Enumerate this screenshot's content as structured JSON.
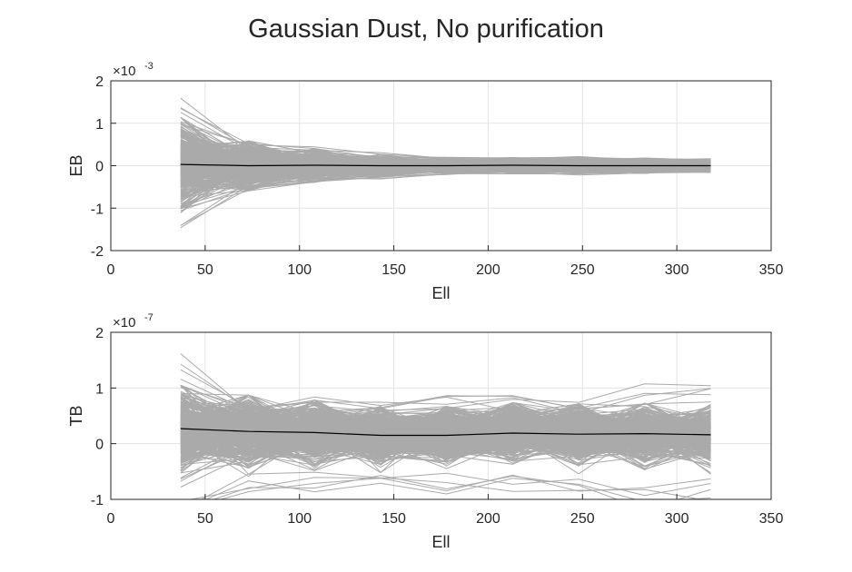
{
  "figure": {
    "title": "Gaussian Dust, No purification"
  },
  "chart_data": [
    {
      "type": "line",
      "ylabel": "EB",
      "xlabel": "Ell",
      "exponent": "-3",
      "xlim": [
        0,
        350
      ],
      "ylim": [
        -2,
        2
      ],
      "xticks": [
        0,
        50,
        100,
        150,
        200,
        250,
        300,
        350
      ],
      "yticks": [
        -2,
        -1,
        0,
        1,
        2
      ],
      "grid": true,
      "x": [
        37,
        73,
        108,
        143,
        178,
        213,
        248,
        283,
        318
      ],
      "mean_line": {
        "color": "#000000",
        "values": [
          0.03,
          0.0,
          0.01,
          0.0,
          0.0,
          0.01,
          0.0,
          0.0,
          0.0
        ]
      },
      "realizations": {
        "color": "#aaaaaa",
        "count": 500,
        "envelope": [
          0.85,
          0.45,
          0.3,
          0.2,
          0.14,
          0.14,
          0.14,
          0.14,
          0.11
        ],
        "extremes": [
          1.78,
          0.62,
          0.45,
          0.32,
          0.22,
          0.2,
          0.22,
          0.2,
          0.17
        ]
      }
    },
    {
      "type": "line",
      "ylabel": "TB",
      "xlabel": "Ell",
      "exponent": "-7",
      "xlim": [
        0,
        350
      ],
      "ylim": [
        -1,
        2
      ],
      "xticks": [
        0,
        50,
        100,
        150,
        200,
        250,
        300,
        350
      ],
      "yticks": [
        -1,
        0,
        1,
        2
      ],
      "grid": true,
      "x": [
        37,
        73,
        108,
        143,
        178,
        213,
        248,
        283,
        318
      ],
      "mean_line": {
        "color": "#000000",
        "values": [
          0.27,
          0.22,
          0.2,
          0.15,
          0.15,
          0.19,
          0.17,
          0.18,
          0.16
        ]
      },
      "realizations": {
        "color": "#aaaaaa",
        "count": 500,
        "envelope": [
          0.6,
          0.5,
          0.45,
          0.4,
          0.4,
          0.42,
          0.42,
          0.42,
          0.42
        ],
        "extremes": [
          1.85,
          0.95,
          0.88,
          0.75,
          0.92,
          0.88,
          0.93,
          1.23,
          1.05
        ]
      }
    }
  ]
}
